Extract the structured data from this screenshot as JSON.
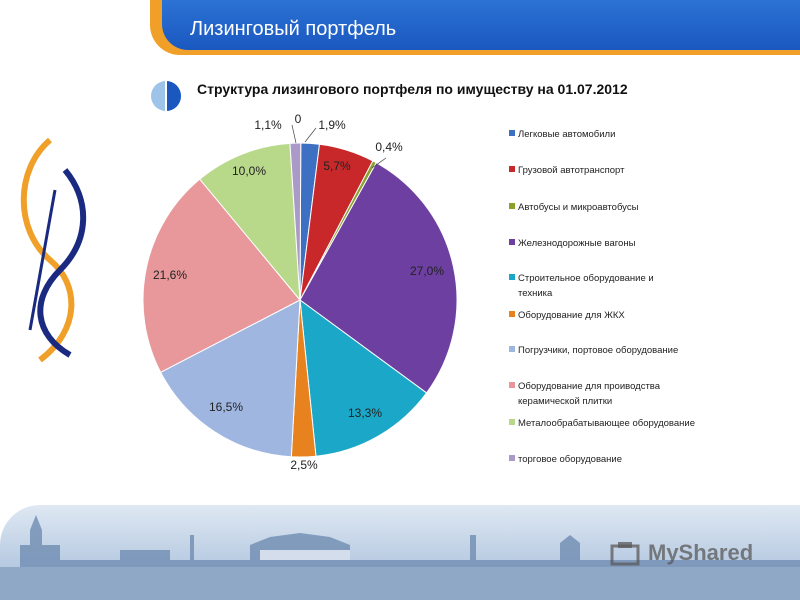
{
  "header": {
    "title": "Лизинговый портфель"
  },
  "subtitle": "Структура лизингового портфеля по имуществу на 01.07.2012",
  "watermark": "MyShared",
  "colors": {
    "header_blue": "#1a58c0",
    "header_orange": "#f0a028"
  },
  "chart_data": {
    "type": "pie",
    "title": "Структура лизингового портфеля по имуществу на 01.07.2012",
    "legend_position": "right",
    "slices": [
      {
        "name": "Легковые автомобили",
        "value": 1.9,
        "label": "1,9%",
        "color": "#3d6fc2"
      },
      {
        "name": "Грузовой автотранспорт",
        "value": 5.7,
        "label": "5,7%",
        "color": "#c8282a"
      },
      {
        "name": "Автобусы и микроавтобусы",
        "value": 0.4,
        "label": "0,4%",
        "color": "#8aa12c"
      },
      {
        "name": "Железнодорожные вагоны",
        "value": 27.0,
        "label": "27,0%",
        "color": "#6c3fa0"
      },
      {
        "name": "Строительное оборудование и техника",
        "value": 13.3,
        "label": "13,3%",
        "color": "#1ba8c8"
      },
      {
        "name": "Оборудование для ЖКХ",
        "value": 2.5,
        "label": "2,5%",
        "color": "#e8821e"
      },
      {
        "name": "Погрузчики, портовое оборудование",
        "value": 16.5,
        "label": "16,5%",
        "color": "#9fb6e0"
      },
      {
        "name": "Оборудование для проиводства керамической плитки",
        "value": 21.6,
        "label": "21,6%",
        "color": "#e8989a"
      },
      {
        "name": "Металообрабатывающее оборудование",
        "value": 10.0,
        "label": "10,0%",
        "color": "#b8d88a"
      },
      {
        "name": "торговое оборудование",
        "value": 1.1,
        "label": "1,1%",
        "color": "#a99ac8"
      },
      {
        "name": "",
        "value": 0,
        "label": "0",
        "color": "#3d6fc2"
      }
    ],
    "legend": [
      {
        "text": "Легковые автомобили",
        "color": "#3d6fc2"
      },
      {
        "text": "Грузовой автотранспорт",
        "color": "#c8282a"
      },
      {
        "text": "Автобусы и микроавтобусы",
        "color": "#8aa12c"
      },
      {
        "text": "Железнодорожные вагоны",
        "color": "#6c3fa0"
      },
      {
        "text": "Строительное оборудование и",
        "text2": "техника",
        "color": "#1ba8c8"
      },
      {
        "text": "Оборудование для ЖКХ",
        "color": "#e8821e"
      },
      {
        "text": "Погрузчики, портовое оборудование",
        "color": "#9fb6e0"
      },
      {
        "text": "Оборудование для проиводства",
        "text2": "керамической плитки",
        "color": "#e8989a"
      },
      {
        "text": "Металообрабатывающее оборудование",
        "color": "#b8d88a"
      },
      {
        "text": "торговое оборудование",
        "color": "#a99ac8"
      }
    ]
  }
}
